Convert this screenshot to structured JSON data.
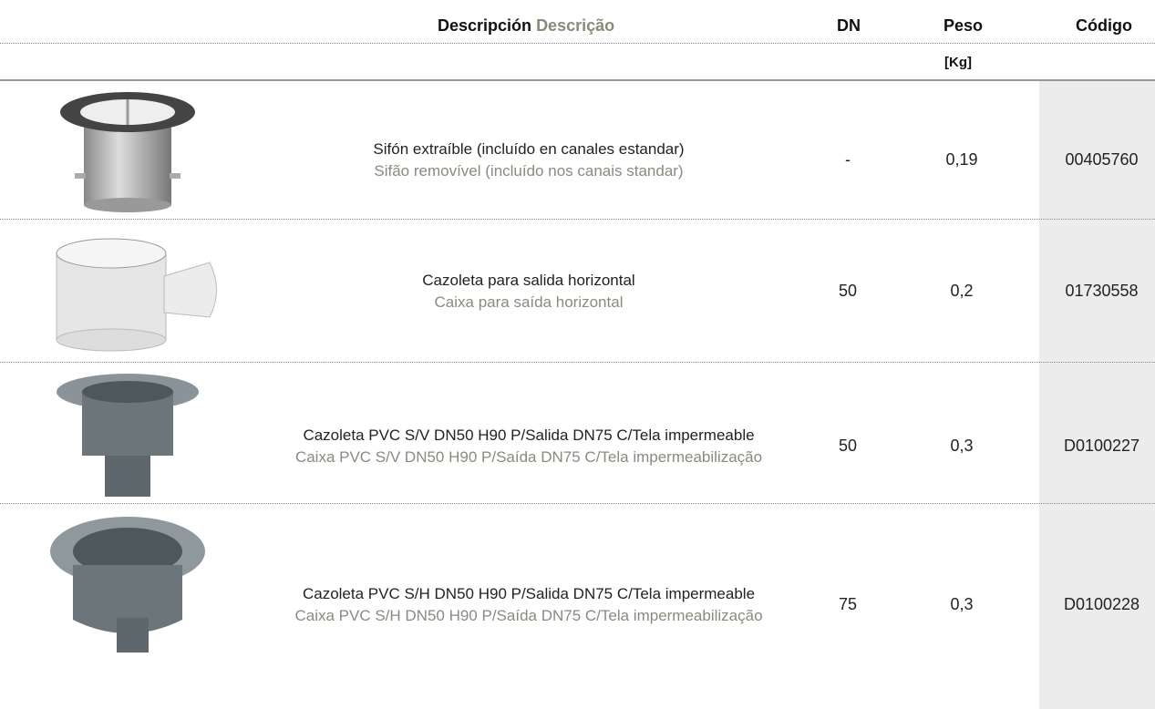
{
  "header": {
    "description_es": "Descripción",
    "description_pt": "Descrição",
    "dn": "DN",
    "peso": "Peso",
    "peso_unit": "[Kg]",
    "codigo": "Código"
  },
  "rows": [
    {
      "description_es": "Sifón extraíble (incluído en canales estandar)",
      "description_pt": "Sifão removível (incluído nos canais standar)",
      "dn": "-",
      "peso": "0,19",
      "codigo": "00405760"
    },
    {
      "description_es": "Cazoleta para salida horizontal",
      "description_pt": "Caixa para saída horizontal",
      "dn": "50",
      "peso": "0,2",
      "codigo": "01730558"
    },
    {
      "description_es": "Cazoleta PVC S/V DN50 H90 P/Salida DN75 C/Tela impermeable",
      "description_pt": "Caixa PVC S/V DN50 H90 P/Saída DN75 C/Tela impermeabilização",
      "dn": "50",
      "peso": "0,3",
      "codigo": "D0100227"
    },
    {
      "description_es": "Cazoleta PVC S/H DN50 H90 P/Salida DN75 C/Tela impermeable",
      "description_pt": "Caixa PVC S/H DN50 H90 P/Saída DN75 C/Tela impermeabilização",
      "dn": "75",
      "peso": "0,3",
      "codigo": "D0100228"
    }
  ]
}
